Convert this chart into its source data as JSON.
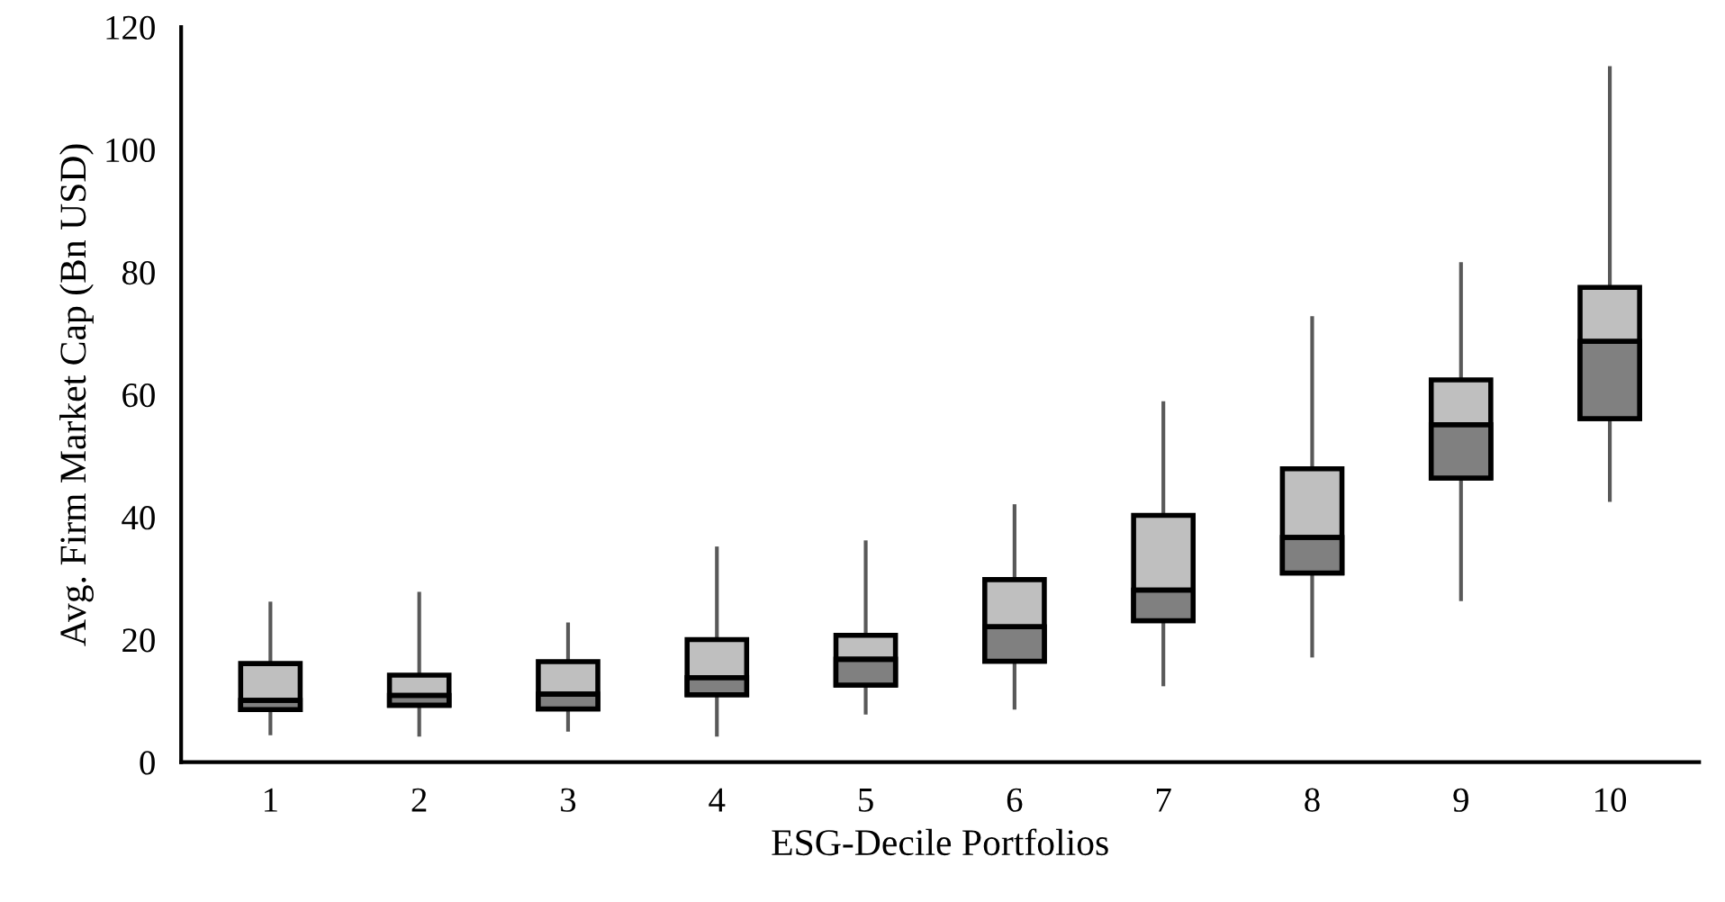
{
  "chart_data": {
    "type": "box",
    "xlabel": "ESG-Decile Portfolios",
    "ylabel": "Avg. Firm Market Cap (Bn USD)",
    "categories": [
      "1",
      "2",
      "3",
      "4",
      "5",
      "6",
      "7",
      "8",
      "9",
      "10"
    ],
    "color": "#bfbfbf",
    "colors": [
      "#808080",
      "#808080",
      "#808080",
      "#808080",
      "#808080",
      "#808080",
      "#808080",
      "#808080",
      "#808080",
      "#808080"
    ],
    "boxes": [
      {
        "low": 4.7,
        "q1": 8.6,
        "median": 10.1,
        "q3": 16.1,
        "high": 25.9
      },
      {
        "low": 4.5,
        "q1": 9.3,
        "median": 10.9,
        "q3": 14.2,
        "high": 27.5
      },
      {
        "low": 5.3,
        "q1": 8.7,
        "median": 11.1,
        "q3": 16.4,
        "high": 22.5
      },
      {
        "low": 4.5,
        "q1": 11.0,
        "median": 13.8,
        "q3": 20.0,
        "high": 34.9
      },
      {
        "low": 8.1,
        "q1": 12.6,
        "median": 16.8,
        "q3": 20.7,
        "high": 35.9
      },
      {
        "low": 8.9,
        "q1": 16.5,
        "median": 22.1,
        "q3": 29.8,
        "high": 41.8
      },
      {
        "low": 12.7,
        "q1": 23.1,
        "median": 28.1,
        "q3": 40.3,
        "high": 58.6
      },
      {
        "low": 17.4,
        "q1": 30.9,
        "median": 36.7,
        "q3": 47.9,
        "high": 72.5
      },
      {
        "low": 26.6,
        "q1": 46.4,
        "median": 55.1,
        "q3": 62.4,
        "high": 81.3
      },
      {
        "low": 42.8,
        "q1": 56.1,
        "median": 68.7,
        "q3": 77.5,
        "high": 113.3
      }
    ],
    "ylim": [
      0,
      120
    ],
    "yticks": [
      0,
      20,
      40,
      60,
      80,
      100,
      120
    ],
    "grid": false
  }
}
